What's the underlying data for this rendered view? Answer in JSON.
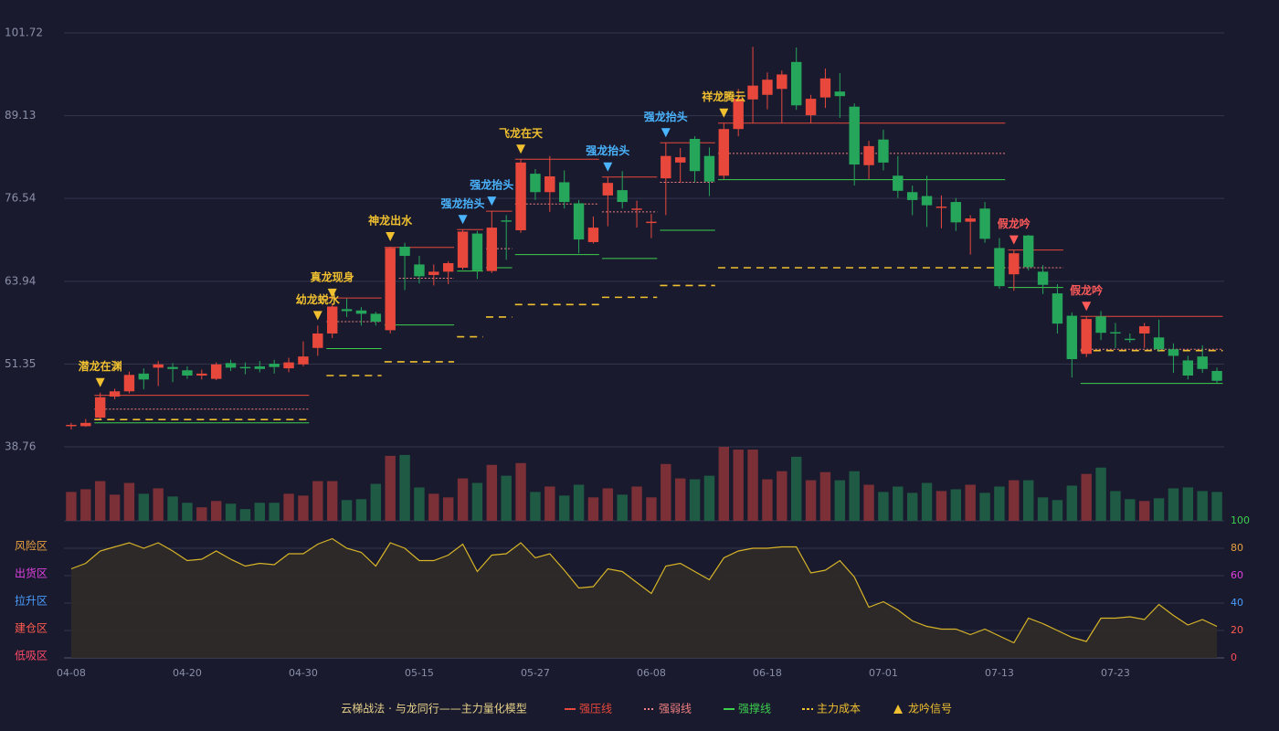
{
  "chart_data": {
    "type": "candlestick",
    "title": "云梯战法 · 与龙同行——主力量化模型",
    "categories": [
      "04-08",
      null,
      null,
      null,
      null,
      null,
      null,
      null,
      "04-20",
      null,
      null,
      null,
      null,
      null,
      null,
      null,
      "04-30",
      null,
      null,
      null,
      null,
      null,
      null,
      null,
      "05-15",
      null,
      null,
      null,
      null,
      null,
      null,
      null,
      "05-27",
      null,
      null,
      null,
      null,
      null,
      null,
      null,
      "06-08",
      null,
      null,
      null,
      null,
      null,
      null,
      null,
      "06-18",
      null,
      null,
      null,
      null,
      null,
      null,
      null,
      "07-01",
      null,
      null,
      null,
      null,
      null,
      null,
      null,
      "07-13",
      null,
      null,
      null,
      null,
      null,
      null,
      null,
      "07-23",
      null,
      null,
      null,
      null,
      null,
      null,
      null
    ],
    "open": [
      41.9,
      41.9,
      43.2,
      46.4,
      47.2,
      49.9,
      50.8,
      50.9,
      50.4,
      49.6,
      49.1,
      51.5,
      50.9,
      51.0,
      51.4,
      50.7,
      51.3,
      53.8,
      56.0,
      59.7,
      59.5,
      59.0,
      56.5,
      69.2,
      66.5,
      64.9,
      65.4,
      66.0,
      71.2,
      65.5,
      73.2,
      71.7,
      80.3,
      77.5,
      79.0,
      75.8,
      69.9,
      77.0,
      77.8,
      74.8,
      72.8,
      79.6,
      82.0,
      85.6,
      83.0,
      80.0,
      87.1,
      91.6,
      92.3,
      93.2,
      97.3,
      89.2,
      91.9,
      92.8,
      90.5,
      81.6,
      85.5,
      80.0,
      77.5,
      76.9,
      75.1,
      76.0,
      73.0,
      75.0,
      69.0,
      65.0,
      70.9,
      65.4,
      62.1,
      58.7,
      52.9,
      58.6,
      56.2,
      55.2,
      56.0,
      55.4,
      53.6,
      51.9,
      52.5,
      50.3
    ],
    "high": [
      42.4,
      43.0,
      47.0,
      47.6,
      50.2,
      50.7,
      51.8,
      51.5,
      51.0,
      50.5,
      51.6,
      52.0,
      51.6,
      51.8,
      52.0,
      52.3,
      54.8,
      57.2,
      60.6,
      61.3,
      60.0,
      59.3,
      69.2,
      69.8,
      67.8,
      66.5,
      67.0,
      71.8,
      71.6,
      74.6,
      74.0,
      82.5,
      81.0,
      83.0,
      80.8,
      76.3,
      73.8,
      79.8,
      80.7,
      76.2,
      74.2,
      85.0,
      84.2,
      86.0,
      84.3,
      88.0,
      93.2,
      99.6,
      95.7,
      96.0,
      99.5,
      92.3,
      96.3,
      95.6,
      91.0,
      85.3,
      87.0,
      83.0,
      78.5,
      80.0,
      77.0,
      76.6,
      74.0,
      76.0,
      70.5,
      68.7,
      71.0,
      66.4,
      63.5,
      59.2,
      58.6,
      59.4,
      57.6,
      56.0,
      57.6,
      58.1,
      54.5,
      52.6,
      54.2,
      50.8
    ],
    "low": [
      41.4,
      41.8,
      43.0,
      46.0,
      46.9,
      47.5,
      48.0,
      48.6,
      49.1,
      49.0,
      48.9,
      50.3,
      49.8,
      50.1,
      49.9,
      50.1,
      51.0,
      52.6,
      55.3,
      58.5,
      57.2,
      57.2,
      56.0,
      62.6,
      63.6,
      63.3,
      63.5,
      65.7,
      64.3,
      65.2,
      67.2,
      71.3,
      76.3,
      74.5,
      75.0,
      68.2,
      69.7,
      72.3,
      75.0,
      72.1,
      70.5,
      74.0,
      78.9,
      79.0,
      76.9,
      79.5,
      86.0,
      88.0,
      90.1,
      88.0,
      90.0,
      88.0,
      90.3,
      88.8,
      78.5,
      79.5,
      80.8,
      76.6,
      74.0,
      72.2,
      72.0,
      71.6,
      68.0,
      69.8,
      62.8,
      62.5,
      65.6,
      62.0,
      56.0,
      49.3,
      52.4,
      55.0,
      53.8,
      54.6,
      53.8,
      53.2,
      50.0,
      49.0,
      50.0,
      48.4
    ],
    "close": [
      42.1,
      42.4,
      46.3,
      47.2,
      49.7,
      49.0,
      51.3,
      50.6,
      49.6,
      49.9,
      51.3,
      50.8,
      50.7,
      50.6,
      50.9,
      51.6,
      52.5,
      56.0,
      60.1,
      59.4,
      59.0,
      57.8,
      69.0,
      67.8,
      64.7,
      65.4,
      66.7,
      71.5,
      65.6,
      72.1,
      73.0,
      82.0,
      77.5,
      79.9,
      76.0,
      70.3,
      72.1,
      78.9,
      76.0,
      75.0,
      73.0,
      83.0,
      82.8,
      80.7,
      79.1,
      87.1,
      91.7,
      93.7,
      94.6,
      95.4,
      90.7,
      91.7,
      94.8,
      92.1,
      81.7,
      84.5,
      82.0,
      77.7,
      76.3,
      75.5,
      75.3,
      72.9,
      73.5,
      70.4,
      63.2,
      68.2,
      66.1,
      63.4,
      57.5,
      52.1,
      58.2,
      56.1,
      56.0,
      55.0,
      57.1,
      53.6,
      52.6,
      49.6,
      50.6,
      48.8
    ],
    "up_color": "#e8483c",
    "down_color": "#26a65b",
    "ylim": [
      38.76,
      101.72
    ],
    "yticks": [
      38.76,
      51.35,
      63.94,
      76.54,
      89.13,
      101.72
    ],
    "grid": true,
    "volume": {
      "values": [
        32,
        35,
        44,
        29,
        42,
        30,
        36,
        27,
        20,
        15,
        22,
        19,
        13,
        20,
        20,
        30,
        28,
        44,
        44,
        23,
        24,
        41,
        72,
        73,
        37,
        30,
        26,
        47,
        42,
        62,
        50,
        64,
        32,
        38,
        28,
        40,
        26,
        36,
        29,
        38,
        26,
        63,
        47,
        46,
        50,
        82,
        79,
        79,
        46,
        55,
        71,
        45,
        54,
        45,
        55,
        40,
        32,
        38,
        31,
        42,
        33,
        35,
        40,
        31,
        38,
        45,
        45,
        26,
        23,
        39,
        52,
        59,
        33,
        24,
        22,
        25,
        36,
        37,
        33,
        32
      ],
      "up_color": "#7a3036",
      "down_color": "#1f5a44"
    },
    "oscillator": {
      "values": [
        65,
        69,
        78,
        81,
        84,
        80,
        84,
        78,
        71,
        72,
        78,
        72,
        67,
        69,
        68,
        76,
        76,
        83,
        87,
        80,
        77,
        67,
        84,
        80,
        71,
        71,
        75,
        83,
        63,
        75,
        76,
        84,
        73,
        76,
        64,
        51,
        52,
        65,
        63,
        55,
        47,
        67,
        69,
        63,
        57,
        73,
        78,
        80,
        80,
        81,
        81,
        62,
        64,
        71,
        59,
        37,
        41,
        35,
        27,
        23,
        21,
        21,
        17,
        21,
        16,
        11,
        29,
        25,
        20,
        15,
        12,
        29,
        29,
        30,
        28,
        39,
        31,
        24,
        28,
        23
      ],
      "color": "#d8b428",
      "ylim": [
        0,
        100
      ],
      "yticks": [
        0,
        20,
        40,
        60,
        80,
        100
      ],
      "tick_colors": [
        "#ff4a5a",
        "#ff5a50",
        "#4a9eff",
        "#e040e0",
        "#e8a040",
        "#3ccf4e"
      ],
      "zones": [
        {
          "label": "低吸区",
          "value": 0,
          "color": "#ff4a6a"
        },
        {
          "label": "建仓区",
          "value": 20,
          "color": "#ff5a50"
        },
        {
          "label": "拉升区",
          "value": 40,
          "color": "#4a9eff"
        },
        {
          "label": "出货区",
          "value": 60,
          "color": "#e040e0"
        },
        {
          "label": "风险区",
          "value": 80,
          "color": "#e8a040"
        }
      ]
    },
    "lines": [
      {
        "name": "强压线",
        "color": "#e8483c",
        "style": "solid",
        "segments": [
          {
            "start": 2,
            "end": 16,
            "value": 46.6
          },
          {
            "start": 18,
            "end": 21,
            "value": 61.4
          },
          {
            "start": 22,
            "end": 26,
            "value": 69.1
          },
          {
            "start": 27,
            "end": 28,
            "value": 71.8
          },
          {
            "start": 29,
            "end": 30,
            "value": 74.6
          },
          {
            "start": 31,
            "end": 36,
            "value": 82.5
          },
          {
            "start": 37,
            "end": 40,
            "value": 79.8
          },
          {
            "start": 41,
            "end": 44,
            "value": 85.0
          },
          {
            "start": 45,
            "end": 64,
            "value": 88.0
          },
          {
            "start": 65,
            "end": 68,
            "value": 68.7
          },
          {
            "start": 70,
            "end": 79,
            "value": 58.6
          }
        ]
      },
      {
        "name": "强弱线",
        "color": "#f08080",
        "style": "dotted",
        "segments": [
          {
            "start": 2,
            "end": 16,
            "value": 44.5
          },
          {
            "start": 18,
            "end": 21,
            "value": 57.8
          },
          {
            "start": 23,
            "end": 26,
            "value": 64.4
          },
          {
            "start": 29,
            "end": 30,
            "value": 68.9
          },
          {
            "start": 31,
            "end": 36,
            "value": 75.7
          },
          {
            "start": 37,
            "end": 40,
            "value": 74.5
          },
          {
            "start": 41,
            "end": 44,
            "value": 79.0
          },
          {
            "start": 45,
            "end": 64,
            "value": 83.4
          },
          {
            "start": 65,
            "end": 68,
            "value": 66.0
          },
          {
            "start": 70,
            "end": 79,
            "value": 53.6
          }
        ]
      },
      {
        "name": "强撑线",
        "color": "#3ccf4e",
        "style": "solid",
        "segments": [
          {
            "start": 2,
            "end": 16,
            "value": 42.4
          },
          {
            "start": 18,
            "end": 21,
            "value": 53.7
          },
          {
            "start": 22,
            "end": 26,
            "value": 57.3
          },
          {
            "start": 27,
            "end": 28,
            "value": 65.5
          },
          {
            "start": 29,
            "end": 30,
            "value": 66.0
          },
          {
            "start": 31,
            "end": 36,
            "value": 68.0
          },
          {
            "start": 37,
            "end": 40,
            "value": 67.4
          },
          {
            "start": 41,
            "end": 44,
            "value": 71.7
          },
          {
            "start": 45,
            "end": 64,
            "value": 79.4
          },
          {
            "start": 65,
            "end": 68,
            "value": 63.0
          },
          {
            "start": 70,
            "end": 79,
            "value": 48.4
          }
        ]
      },
      {
        "name": "主力成本",
        "color": "#f0c030",
        "style": "dashed",
        "segments": [
          {
            "start": 2,
            "end": 16,
            "value": 42.9
          },
          {
            "start": 18,
            "end": 21,
            "value": 49.6
          },
          {
            "start": 22,
            "end": 26,
            "value": 51.7
          },
          {
            "start": 27,
            "end": 28,
            "value": 55.5
          },
          {
            "start": 29,
            "end": 30,
            "value": 58.5
          },
          {
            "start": 31,
            "end": 36,
            "value": 60.4
          },
          {
            "start": 37,
            "end": 40,
            "value": 61.5
          },
          {
            "start": 41,
            "end": 44,
            "value": 63.3
          },
          {
            "start": 45,
            "end": 64,
            "value": 66.0
          },
          {
            "start": 70,
            "end": 79,
            "value": 53.4
          }
        ]
      }
    ],
    "signals": [
      {
        "index": 2,
        "label": "潜龙在渊",
        "color": "#f0c030"
      },
      {
        "index": 17,
        "label": "幼龙蜕水",
        "color": "#f0c030"
      },
      {
        "index": 18,
        "label": "真龙现身",
        "color": "#f0c030"
      },
      {
        "index": 22,
        "label": "神龙出水",
        "color": "#f0c030"
      },
      {
        "index": 27,
        "label": "强龙抬头",
        "color": "#4ab4ff"
      },
      {
        "index": 29,
        "label": "强龙抬头",
        "color": "#4ab4ff"
      },
      {
        "index": 31,
        "label": "飞龙在天",
        "color": "#f0c030"
      },
      {
        "index": 37,
        "label": "强龙抬头",
        "color": "#4ab4ff"
      },
      {
        "index": 41,
        "label": "强龙抬头",
        "color": "#4ab4ff"
      },
      {
        "index": 45,
        "label": "祥龙腾云",
        "color": "#f0c030"
      },
      {
        "index": 65,
        "label": "假龙吟",
        "color": "#ff5a5a"
      },
      {
        "index": 70,
        "label": "假龙吟",
        "color": "#ff5a5a"
      }
    ],
    "signal_legend": {
      "label": "龙吟信号",
      "color": "#f0c030"
    }
  }
}
